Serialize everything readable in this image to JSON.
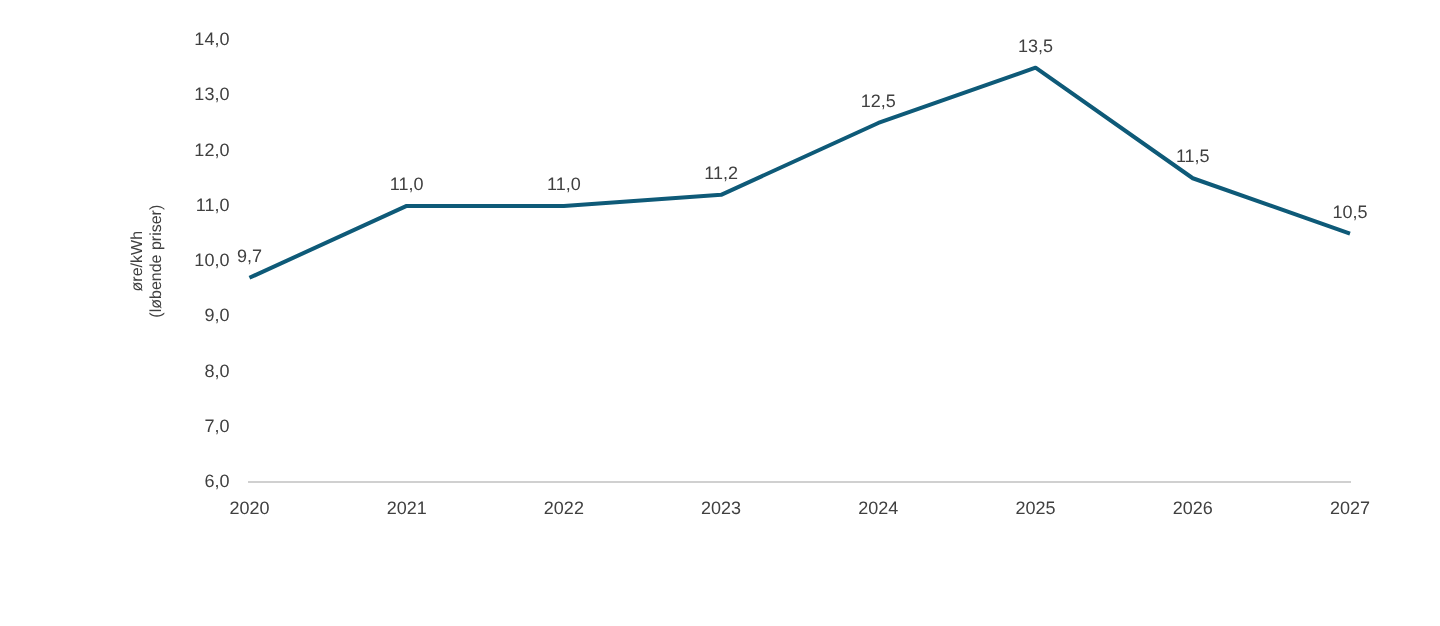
{
  "chart_data": {
    "type": "line",
    "ylabel": "øre/kWh\n(løbende priser)",
    "categories": [
      "2020",
      "2021",
      "2022",
      "2023",
      "2024",
      "2025",
      "2026",
      "2027"
    ],
    "series": [
      {
        "color": "#0e5a78",
        "values": [
          9.7,
          11.0,
          11.0,
          11.2,
          12.5,
          13.5,
          11.5,
          10.5
        ],
        "value_labels": [
          "9,7",
          "11,0",
          "11,0",
          "11,2",
          "12,5",
          "13,5",
          "11,5",
          "10,5"
        ]
      }
    ],
    "ylim": [
      6,
      14
    ],
    "yticks": [
      {
        "value": 6,
        "label": "6,0"
      },
      {
        "value": 7,
        "label": "7,0"
      },
      {
        "value": 8,
        "label": "8,0"
      },
      {
        "value": 9,
        "label": "9,0"
      },
      {
        "value": 10,
        "label": "10,0"
      },
      {
        "value": 11,
        "label": "11,0"
      },
      {
        "value": 12,
        "label": "12,0"
      },
      {
        "value": 13,
        "label": "13,0"
      },
      {
        "value": 14,
        "label": "14,0"
      }
    ],
    "grid": false,
    "legend": false,
    "marker": "none",
    "line_style": "solid"
  }
}
